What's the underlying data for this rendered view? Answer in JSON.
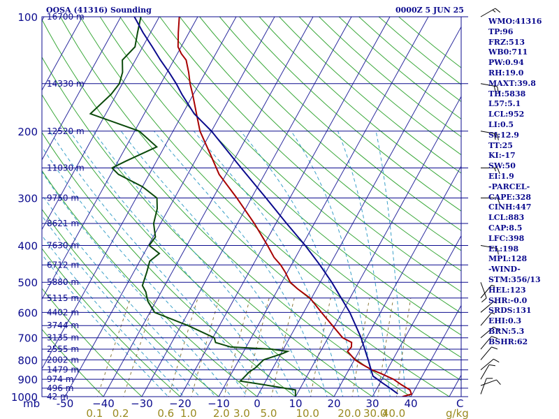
{
  "header": {
    "title": "OOSA (41316) Sounding",
    "datetime": "0000Z  5 JUN 25"
  },
  "indices": [
    "WMO:41316",
    "TP:96",
    "FRZ:513",
    "WB0:711",
    "PW:0.94",
    "RH:19.0",
    "MAXT:39.8",
    "TH:5838",
    "L57:5.1",
    "LCL:952",
    "LI:0.5",
    "SI:12.9",
    "TT:25",
    "KI:-17",
    "SW:50",
    "EI:1.9",
    "-PARCEL-",
    "CAPE:328",
    "CINH:447",
    "LCL:883",
    "CAP:8.5",
    "LFC:398",
    "EL:198",
    "MPL:128",
    "-WIND-",
    "STM:356/13",
    "HEL:123",
    "SHR:-0.0",
    "SRDS:131",
    "EHI:0.3",
    "BRN:5.3",
    "BSHR:62"
  ],
  "chart_data": {
    "type": "line",
    "subtype": "skew-T log-P sounding",
    "y_axis": {
      "unit_label": "mb",
      "scale": "log",
      "range": [
        1000,
        100
      ],
      "ticks": [
        100,
        200,
        300,
        400,
        500,
        600,
        700,
        800,
        900,
        1000
      ]
    },
    "x_axis": {
      "range": [
        -50,
        50
      ],
      "ticks": [
        -50,
        -40,
        -30,
        -20,
        -10,
        0,
        10,
        20,
        30,
        40
      ],
      "tick_labels": [
        "-50",
        "−40",
        "−30",
        "−20",
        "−10",
        "0",
        "10",
        "20",
        "30",
        "40"
      ],
      "end_label": "C",
      "skewed": true
    },
    "mixing_ratio_axis": {
      "unit_label": "g/kg",
      "ticks": [
        {
          "label": "0.1",
          "value": 0.1
        },
        {
          "label": "0.2",
          "value": 0.2
        },
        {
          "label": "0.6",
          "value": 0.6
        },
        {
          "label": "1.0",
          "value": 1.0
        },
        {
          "label": "2.0",
          "value": 2.0
        },
        {
          "label": "3.0",
          "value": 3.0
        },
        {
          "label": "5.0",
          "value": 5.0
        },
        {
          "label": "10.0",
          "value": 10.0
        },
        {
          "label": "20.0",
          "value": 20.0
        },
        {
          "label": "30.0",
          "value": 30.0
        },
        {
          "label": "40.0",
          "value": 40.0
        }
      ]
    },
    "height_labels": [
      {
        "p": 100,
        "label": "16700 m"
      },
      {
        "p": 150,
        "label": "14330 m"
      },
      {
        "p": 200,
        "label": "12520 m"
      },
      {
        "p": 250,
        "label": "11030 m"
      },
      {
        "p": 300,
        "label": "9750 m"
      },
      {
        "p": 350,
        "label": "8621 m"
      },
      {
        "p": 400,
        "label": "7630 m"
      },
      {
        "p": 450,
        "label": "6712 m"
      },
      {
        "p": 500,
        "label": "5880 m"
      },
      {
        "p": 550,
        "label": "5115 m"
      },
      {
        "p": 600,
        "label": "4402 m"
      },
      {
        "p": 650,
        "label": "3744 m"
      },
      {
        "p": 700,
        "label": "3135 m"
      },
      {
        "p": 750,
        "label": "2555 m"
      },
      {
        "p": 800,
        "label": "2002 m"
      },
      {
        "p": 850,
        "label": "1479 m"
      },
      {
        "p": 900,
        "label": "974 m"
      },
      {
        "p": 950,
        "label": "496 m"
      },
      {
        "p": 1000,
        "label": "42 m"
      }
    ],
    "series": [
      {
        "role": "temperature",
        "color": "#a80000",
        "points": [
          [
            1000,
            37.8
          ],
          [
            985,
            39.8
          ],
          [
            960,
            38.8
          ],
          [
            930,
            35.8
          ],
          [
            900,
            33.0
          ],
          [
            870,
            29.0
          ],
          [
            850,
            26.0
          ],
          [
            820,
            22.4
          ],
          [
            800,
            20.2
          ],
          [
            760,
            17.0
          ],
          [
            740,
            17.4
          ],
          [
            720,
            16.8
          ],
          [
            700,
            13.8
          ],
          [
            650,
            9.4
          ],
          [
            600,
            4.6
          ],
          [
            550,
            -0.4
          ],
          [
            520,
            -5.0
          ],
          [
            500,
            -7.8
          ],
          [
            470,
            -10.6
          ],
          [
            450,
            -12.8
          ],
          [
            430,
            -15.6
          ],
          [
            400,
            -19.0
          ],
          [
            350,
            -25.6
          ],
          [
            300,
            -33.8
          ],
          [
            260,
            -41.8
          ],
          [
            230,
            -47.0
          ],
          [
            200,
            -53.0
          ],
          [
            180,
            -56.4
          ],
          [
            160,
            -60.2
          ],
          [
            150,
            -62.4
          ],
          [
            140,
            -64.4
          ],
          [
            130,
            -66.8
          ],
          [
            125,
            -69.0
          ],
          [
            120,
            -70.8
          ],
          [
            110,
            -72.8
          ],
          [
            100,
            -74.8
          ]
        ]
      },
      {
        "role": "dewpoint",
        "color": "#0b4a0b",
        "points": [
          [
            1000,
            10.0
          ],
          [
            985,
            9.6
          ],
          [
            960,
            9.0
          ],
          [
            930,
            0.0
          ],
          [
            910,
            -6.6
          ],
          [
            880,
            -6.0
          ],
          [
            860,
            -5.6
          ],
          [
            840,
            -4.6
          ],
          [
            800,
            -3.6
          ],
          [
            770,
            0.4
          ],
          [
            760,
            1.4
          ],
          [
            750,
            -3.0
          ],
          [
            740,
            -14.0
          ],
          [
            720,
            -18.6
          ],
          [
            700,
            -19.6
          ],
          [
            650,
            -28.2
          ],
          [
            600,
            -38.8
          ],
          [
            560,
            -42.2
          ],
          [
            530,
            -44.0
          ],
          [
            510,
            -45.8
          ],
          [
            470,
            -46.6
          ],
          [
            440,
            -47.4
          ],
          [
            420,
            -46.0
          ],
          [
            400,
            -49.8
          ],
          [
            380,
            -49.4
          ],
          [
            350,
            -51.8
          ],
          [
            320,
            -53.0
          ],
          [
            300,
            -54.6
          ],
          [
            280,
            -60.0
          ],
          [
            260,
            -68.0
          ],
          [
            250,
            -70.6
          ],
          [
            240,
            -68.0
          ],
          [
            220,
            -62.0
          ],
          [
            200,
            -68.8
          ],
          [
            180,
            -84.0
          ],
          [
            160,
            -81.4
          ],
          [
            150,
            -80.8
          ],
          [
            140,
            -81.6
          ],
          [
            130,
            -83.4
          ],
          [
            120,
            -82.0
          ],
          [
            110,
            -83.4
          ],
          [
            100,
            -84.8
          ]
        ]
      },
      {
        "role": "parcel",
        "color": "#0a0a8c",
        "points": [
          [
            983,
            36.2
          ],
          [
            950,
            33.4
          ],
          [
            920,
            30.6
          ],
          [
            900,
            28.8
          ],
          [
            883,
            27.2
          ],
          [
            850,
            25.8
          ],
          [
            800,
            23.6
          ],
          [
            700,
            18.6
          ],
          [
            600,
            12.0
          ],
          [
            500,
            3.0
          ],
          [
            450,
            -2.6
          ],
          [
            400,
            -9.2
          ],
          [
            350,
            -17.2
          ],
          [
            300,
            -26.2
          ],
          [
            250,
            -37.0
          ],
          [
            200,
            -50.0
          ],
          [
            180,
            -57.0
          ],
          [
            160,
            -63.0
          ],
          [
            150,
            -66.0
          ],
          [
            140,
            -69.5
          ],
          [
            130,
            -73.5
          ],
          [
            120,
            -77.5
          ],
          [
            110,
            -82.0
          ],
          [
            100,
            -86.5
          ]
        ]
      }
    ],
    "wind_barbs": [
      {
        "p": 985,
        "dir": 200,
        "spd": 10
      },
      {
        "p": 935,
        "dir": 250,
        "spd": 10
      },
      {
        "p": 900,
        "dir": 210,
        "spd": 10
      },
      {
        "p": 850,
        "dir": 230,
        "spd": 10
      },
      {
        "p": 800,
        "dir": 220,
        "spd": 10
      },
      {
        "p": 750,
        "dir": 220,
        "spd": 10
      },
      {
        "p": 700,
        "dir": 230,
        "spd": 10
      },
      {
        "p": 650,
        "dir": 220,
        "spd": 5
      },
      {
        "p": 600,
        "dir": 230,
        "spd": 5
      },
      {
        "p": 550,
        "dir": 220,
        "spd": 5
      },
      {
        "p": 500,
        "dir": 340,
        "spd": 10
      },
      {
        "p": 400,
        "dir": 280,
        "spd": 10
      },
      {
        "p": 300,
        "dir": 270,
        "spd": 10
      },
      {
        "p": 250,
        "dir": 270,
        "spd": 15
      },
      {
        "p": 200,
        "dir": 280,
        "spd": 20
      },
      {
        "p": 150,
        "dir": 280,
        "spd": 20
      },
      {
        "p": 100,
        "dir": 240,
        "spd": 15
      }
    ],
    "grid": true
  },
  "colors": {
    "frame": "#0b0b8e",
    "isobar": "#0b0b8e",
    "isotherm": "#2b2b9e",
    "dry_adiabat": "#3aa83a",
    "moist_adiabat": "#3aa0c8",
    "mixing_ratio": "#8a7a3a",
    "text": "#0b0b8e",
    "mixing_ratio_text": "#9a8a20"
  }
}
